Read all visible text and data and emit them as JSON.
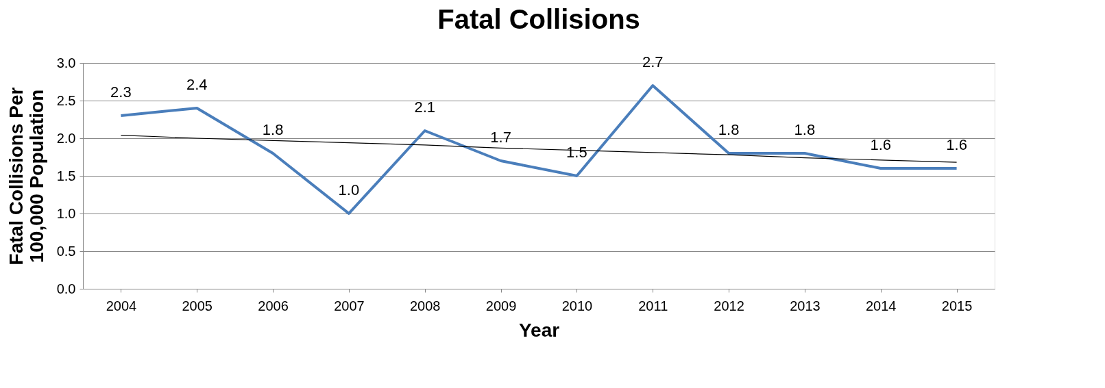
{
  "chart_data": {
    "type": "line",
    "title": "Fatal Collisions",
    "xlabel": "Year",
    "ylabel": "Fatal Collisions Per\n100,000 Population",
    "categories": [
      "2004",
      "2005",
      "2006",
      "2007",
      "2008",
      "2009",
      "2010",
      "2011",
      "2012",
      "2013",
      "2014",
      "2015"
    ],
    "series": [
      {
        "color": "#4a7ebb",
        "values": [
          2.3,
          2.4,
          1.8,
          1.0,
          2.1,
          1.7,
          1.5,
          2.7,
          1.8,
          1.8,
          1.6,
          1.6
        ],
        "value_labels": [
          "2.3",
          "2.4",
          "1.8",
          "1.0",
          "2.1",
          "1.7",
          "1.5",
          "2.7",
          "1.8",
          "1.8",
          "1.6",
          "1.6"
        ]
      },
      {
        "color": "#000000",
        "values": [
          2.04,
          2.0,
          1.97,
          1.94,
          1.91,
          1.87,
          1.84,
          1.81,
          1.78,
          1.74,
          1.71,
          1.68
        ]
      }
    ],
    "ylim": [
      0,
      3
    ],
    "yticks": [
      {
        "value": 0,
        "label": "0.0"
      },
      0.5,
      {
        "value": 1,
        "label": "1.0"
      },
      1.5,
      {
        "value": 2,
        "label": "2.0"
      },
      2.5,
      {
        "value": 3,
        "label": "3.0"
      }
    ],
    "grid": "y",
    "legend": false,
    "marker": "none",
    "line_style": "solid"
  }
}
